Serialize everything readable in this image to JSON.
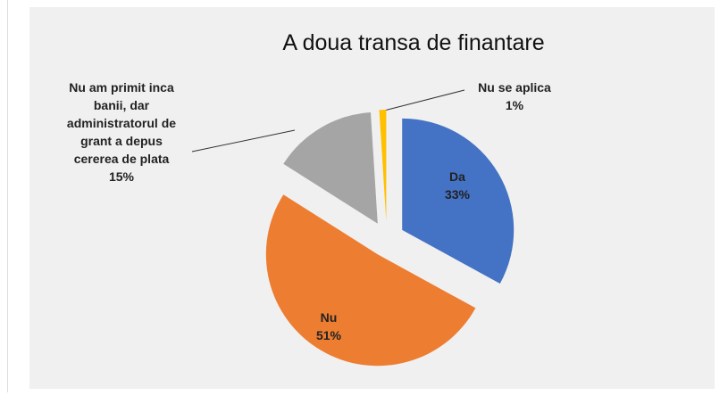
{
  "chart_data": {
    "type": "pie",
    "title": "A doua transa de finantare",
    "categories": [
      "Da",
      "Nu",
      "Nu am primit inca banii, dar administratorul de grant a depus cererea de plata",
      "Nu se aplica"
    ],
    "values": [
      33,
      51,
      15,
      1
    ],
    "value_labels": [
      "33%",
      "51%",
      "15%",
      "1%"
    ],
    "colors": [
      "#4472c4",
      "#ed7d31",
      "#a5a5a5",
      "#ffc000"
    ],
    "exploded": true
  }
}
